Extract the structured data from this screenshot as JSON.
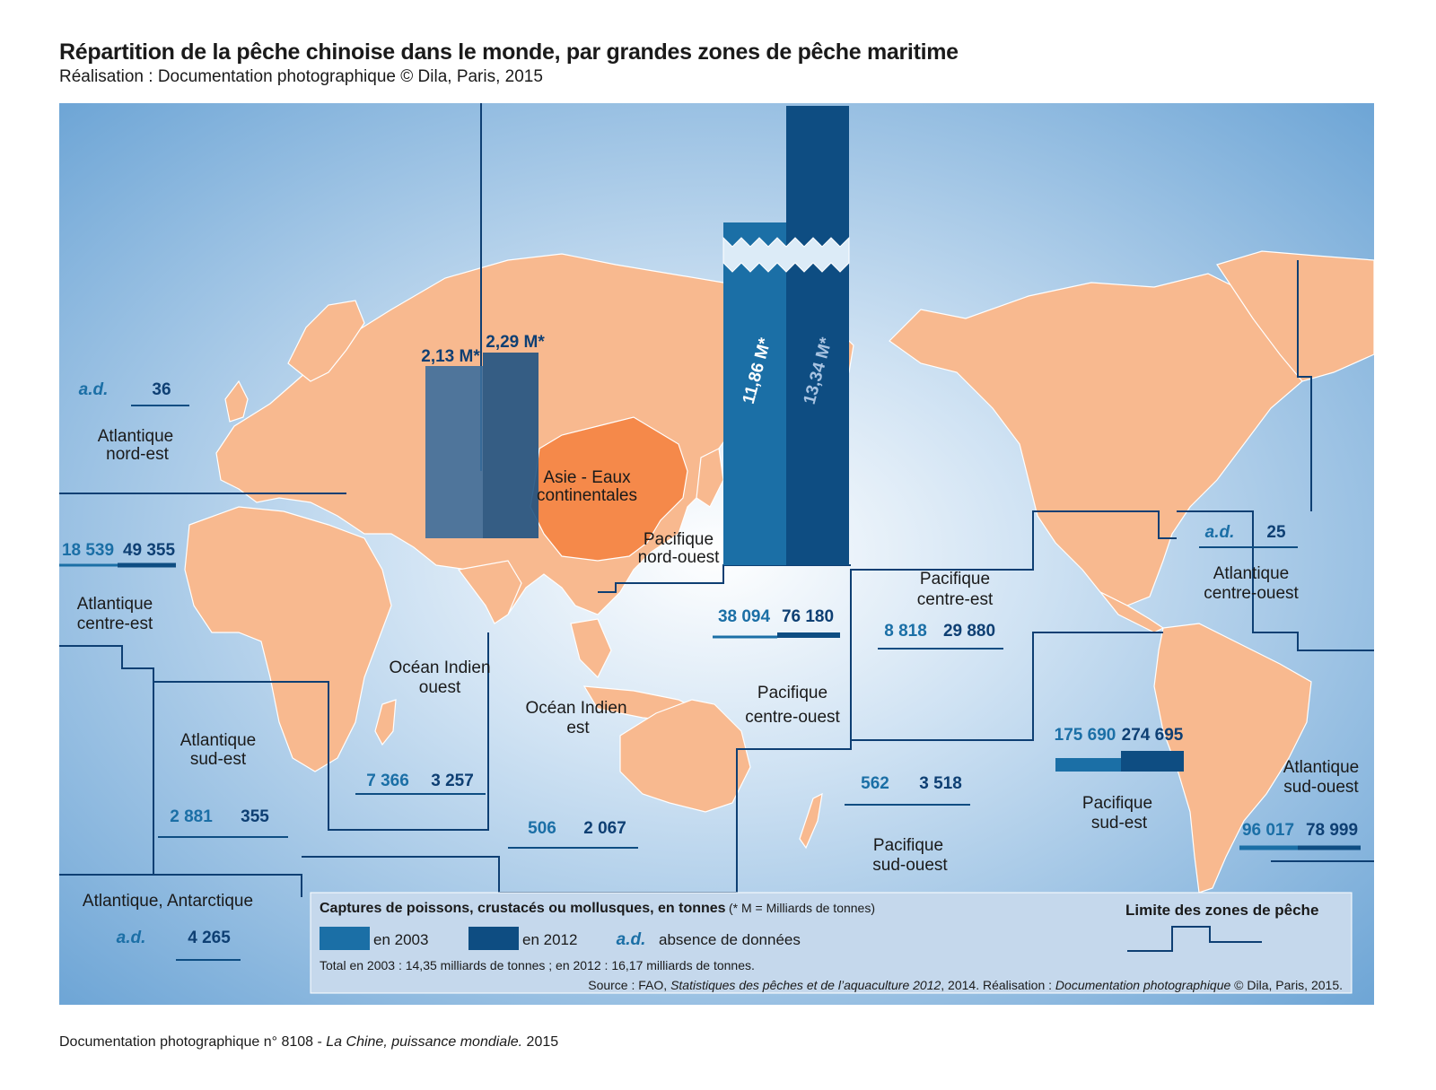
{
  "title": "Répartition de la pêche chinoise dans le monde, par grandes zones de pêche maritime",
  "subtitle": "Réalisation : Documentation photographique © Dila, Paris, 2015",
  "footer": {
    "prefix": "Documentation photographique n° 8108 - ",
    "work": "La Chine, puissance mondiale.",
    "year": " 2015"
  },
  "colors": {
    "ocean": "#7fb3df",
    "land": "#f8b98f",
    "china": "#f5894a",
    "bar_2003": "#1b6fa6",
    "bar_2012": "#0e4d82",
    "legend_bg": "#c5d8ec"
  },
  "zones": [
    {
      "id": "atl-ne",
      "name1": "Atlantique",
      "name2": "nord-est",
      "v2003": "a.d.",
      "v2012": "36"
    },
    {
      "id": "atl-ce",
      "name1": "Atlantique",
      "name2": "centre-est",
      "v2003": "18 539",
      "v2012": "49 355"
    },
    {
      "id": "atl-se",
      "name1": "Atlantique",
      "name2": "sud-est",
      "v2003": "2 881",
      "v2012": "355"
    },
    {
      "id": "atl-ant",
      "name1": "Atlantique, Antarctique",
      "name2": "",
      "v2003": "a.d.",
      "v2012": "4 265"
    },
    {
      "id": "ind-o",
      "name1": "Océan Indien",
      "name2": "ouest",
      "v2003": "7 366",
      "v2012": "3 257"
    },
    {
      "id": "ind-e",
      "name1": "Océan Indien",
      "name2": "est",
      "v2003": "506",
      "v2012": "2 067"
    },
    {
      "id": "asie",
      "name1": "Asie - Eaux",
      "name2": "continentales",
      "v2003": "2,13 M*",
      "v2012": "2,29 M*"
    },
    {
      "id": "pac-no",
      "name1": "Pacifique",
      "name2": "nord-ouest",
      "v2003": "11,86 M*",
      "v2012": "13,34 M*"
    },
    {
      "id": "pac-co",
      "name1": "Pacifique",
      "name2": "centre-ouest",
      "v2003": "38 094",
      "v2012": "76 180"
    },
    {
      "id": "pac-so",
      "name1": "Pacifique",
      "name2": "sud-ouest",
      "v2003": "562",
      "v2012": "3 518"
    },
    {
      "id": "pac-ce",
      "name1": "Pacifique",
      "name2": "centre-est",
      "v2003": "8 818",
      "v2012": "29 880"
    },
    {
      "id": "pac-se",
      "name1": "Pacifique",
      "name2": "sud-est",
      "v2003": "175 690",
      "v2012": "274 695"
    },
    {
      "id": "atl-co",
      "name1": "Atlantique",
      "name2": "centre-ouest",
      "v2003": "a.d.",
      "v2012": "25"
    },
    {
      "id": "atl-so",
      "name1": "Atlantique",
      "name2": "sud-ouest",
      "v2003": "96 017",
      "v2012": "78 999"
    }
  ],
  "legend": {
    "title": "Captures de poissons, crustacés ou mollusques, en tonnes",
    "note": "(* M = Milliards de tonnes)",
    "label_2003": "en 2003",
    "label_2012": "en 2012",
    "ad_symbol": "a.d.",
    "ad_label": "absence de données",
    "total": "Total en 2003 : 14,35 milliards de tonnes ; en 2012 : 16,17 milliards de tonnes.",
    "source_prefix": "Source : FAO, ",
    "source_work": "Statistiques des pêches et de l’aquaculture 2012",
    "source_mid": ", 2014.  Réalisation : ",
    "source_pub": "Documentation photographique",
    "source_suffix": " © Dila, Paris, 2015.",
    "limit_title": "Limite des zones de pêche"
  }
}
